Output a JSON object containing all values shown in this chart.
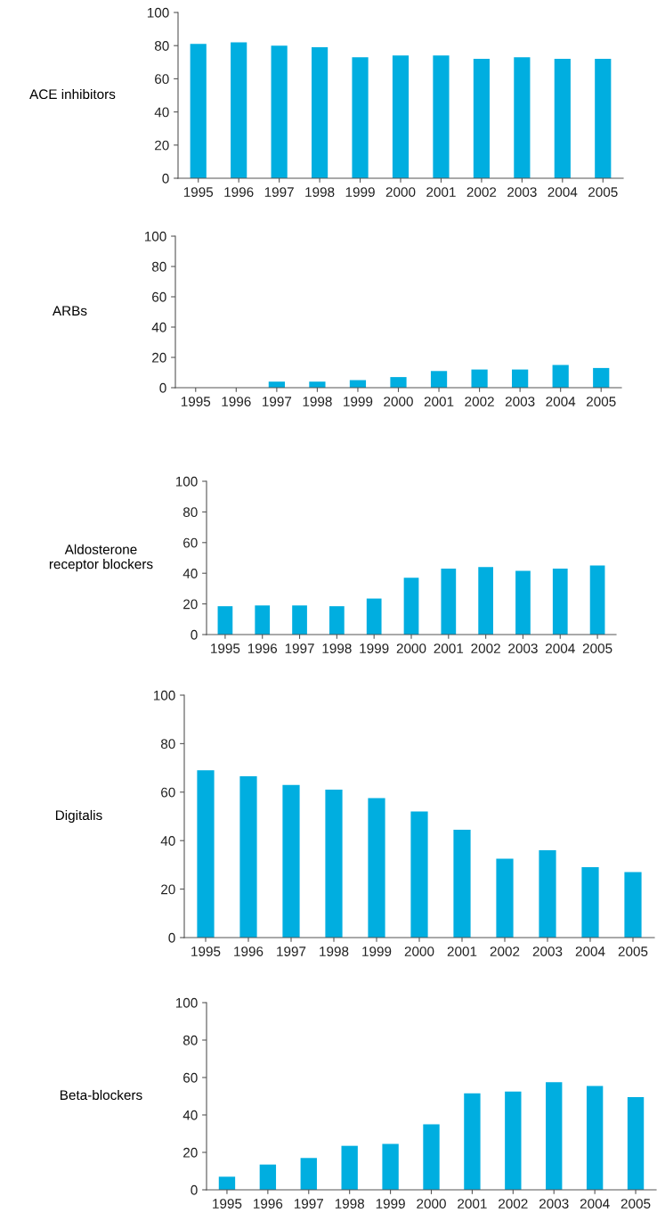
{
  "chart_data": [
    {
      "type": "bar",
      "ylabel": "ACE inhibitors",
      "categories": [
        "1995",
        "1996",
        "1997",
        "1998",
        "1999",
        "2000",
        "2001",
        "2002",
        "2003",
        "2004",
        "2005"
      ],
      "color": "#00aee0",
      "values": [
        81,
        82,
        80,
        79,
        73,
        74,
        74,
        72,
        73,
        72,
        72
      ],
      "ylim": [
        0,
        100
      ],
      "yticks": [
        0,
        20,
        40,
        60,
        80,
        100
      ],
      "grid": false,
      "legend": false
    },
    {
      "type": "bar",
      "ylabel": "ARBs",
      "categories": [
        "1995",
        "1996",
        "1997",
        "1998",
        "1999",
        "2000",
        "2001",
        "2002",
        "2003",
        "2004",
        "2005"
      ],
      "color": "#00aee0",
      "values": [
        0,
        0,
        4,
        4,
        5,
        7,
        11,
        12,
        12,
        15,
        13
      ],
      "ylim": [
        0,
        100
      ],
      "yticks": [
        0,
        20,
        40,
        60,
        80,
        100
      ],
      "grid": false,
      "legend": false
    },
    {
      "type": "bar",
      "ylabel": "Aldosterone\nreceptor blockers",
      "categories": [
        "1995",
        "1996",
        "1997",
        "1998",
        "1999",
        "2000",
        "2001",
        "2002",
        "2003",
        "2004",
        "2005"
      ],
      "color": "#00aee0",
      "values": [
        18.5,
        19,
        19,
        18.5,
        23.5,
        37,
        43,
        44,
        41.5,
        43,
        45
      ],
      "ylim": [
        0,
        100
      ],
      "yticks": [
        0,
        20,
        40,
        60,
        80,
        100
      ],
      "grid": false,
      "legend": false
    },
    {
      "type": "bar",
      "ylabel": "Digitalis",
      "categories": [
        "1995",
        "1996",
        "1997",
        "1998",
        "1999",
        "2000",
        "2001",
        "2002",
        "2003",
        "2004",
        "2005"
      ],
      "color": "#00aee0",
      "values": [
        69,
        66.5,
        63,
        61,
        57.5,
        52,
        44.5,
        32.5,
        36,
        29,
        27
      ],
      "ylim": [
        0,
        100
      ],
      "yticks": [
        0,
        20,
        40,
        60,
        80,
        100
      ],
      "grid": false,
      "legend": false
    },
    {
      "type": "bar",
      "ylabel": "Beta-blockers",
      "categories": [
        "1995",
        "1996",
        "1997",
        "1998",
        "1999",
        "2000",
        "2001",
        "2002",
        "2003",
        "2004",
        "2005"
      ],
      "color": "#00aee0",
      "values": [
        7,
        13.5,
        17,
        23.5,
        24.5,
        35,
        51.5,
        52.5,
        57.5,
        55.5,
        49.5
      ],
      "ylim": [
        0,
        100
      ],
      "yticks": [
        0,
        20,
        40,
        60,
        80,
        100
      ],
      "grid": false,
      "legend": false
    }
  ]
}
